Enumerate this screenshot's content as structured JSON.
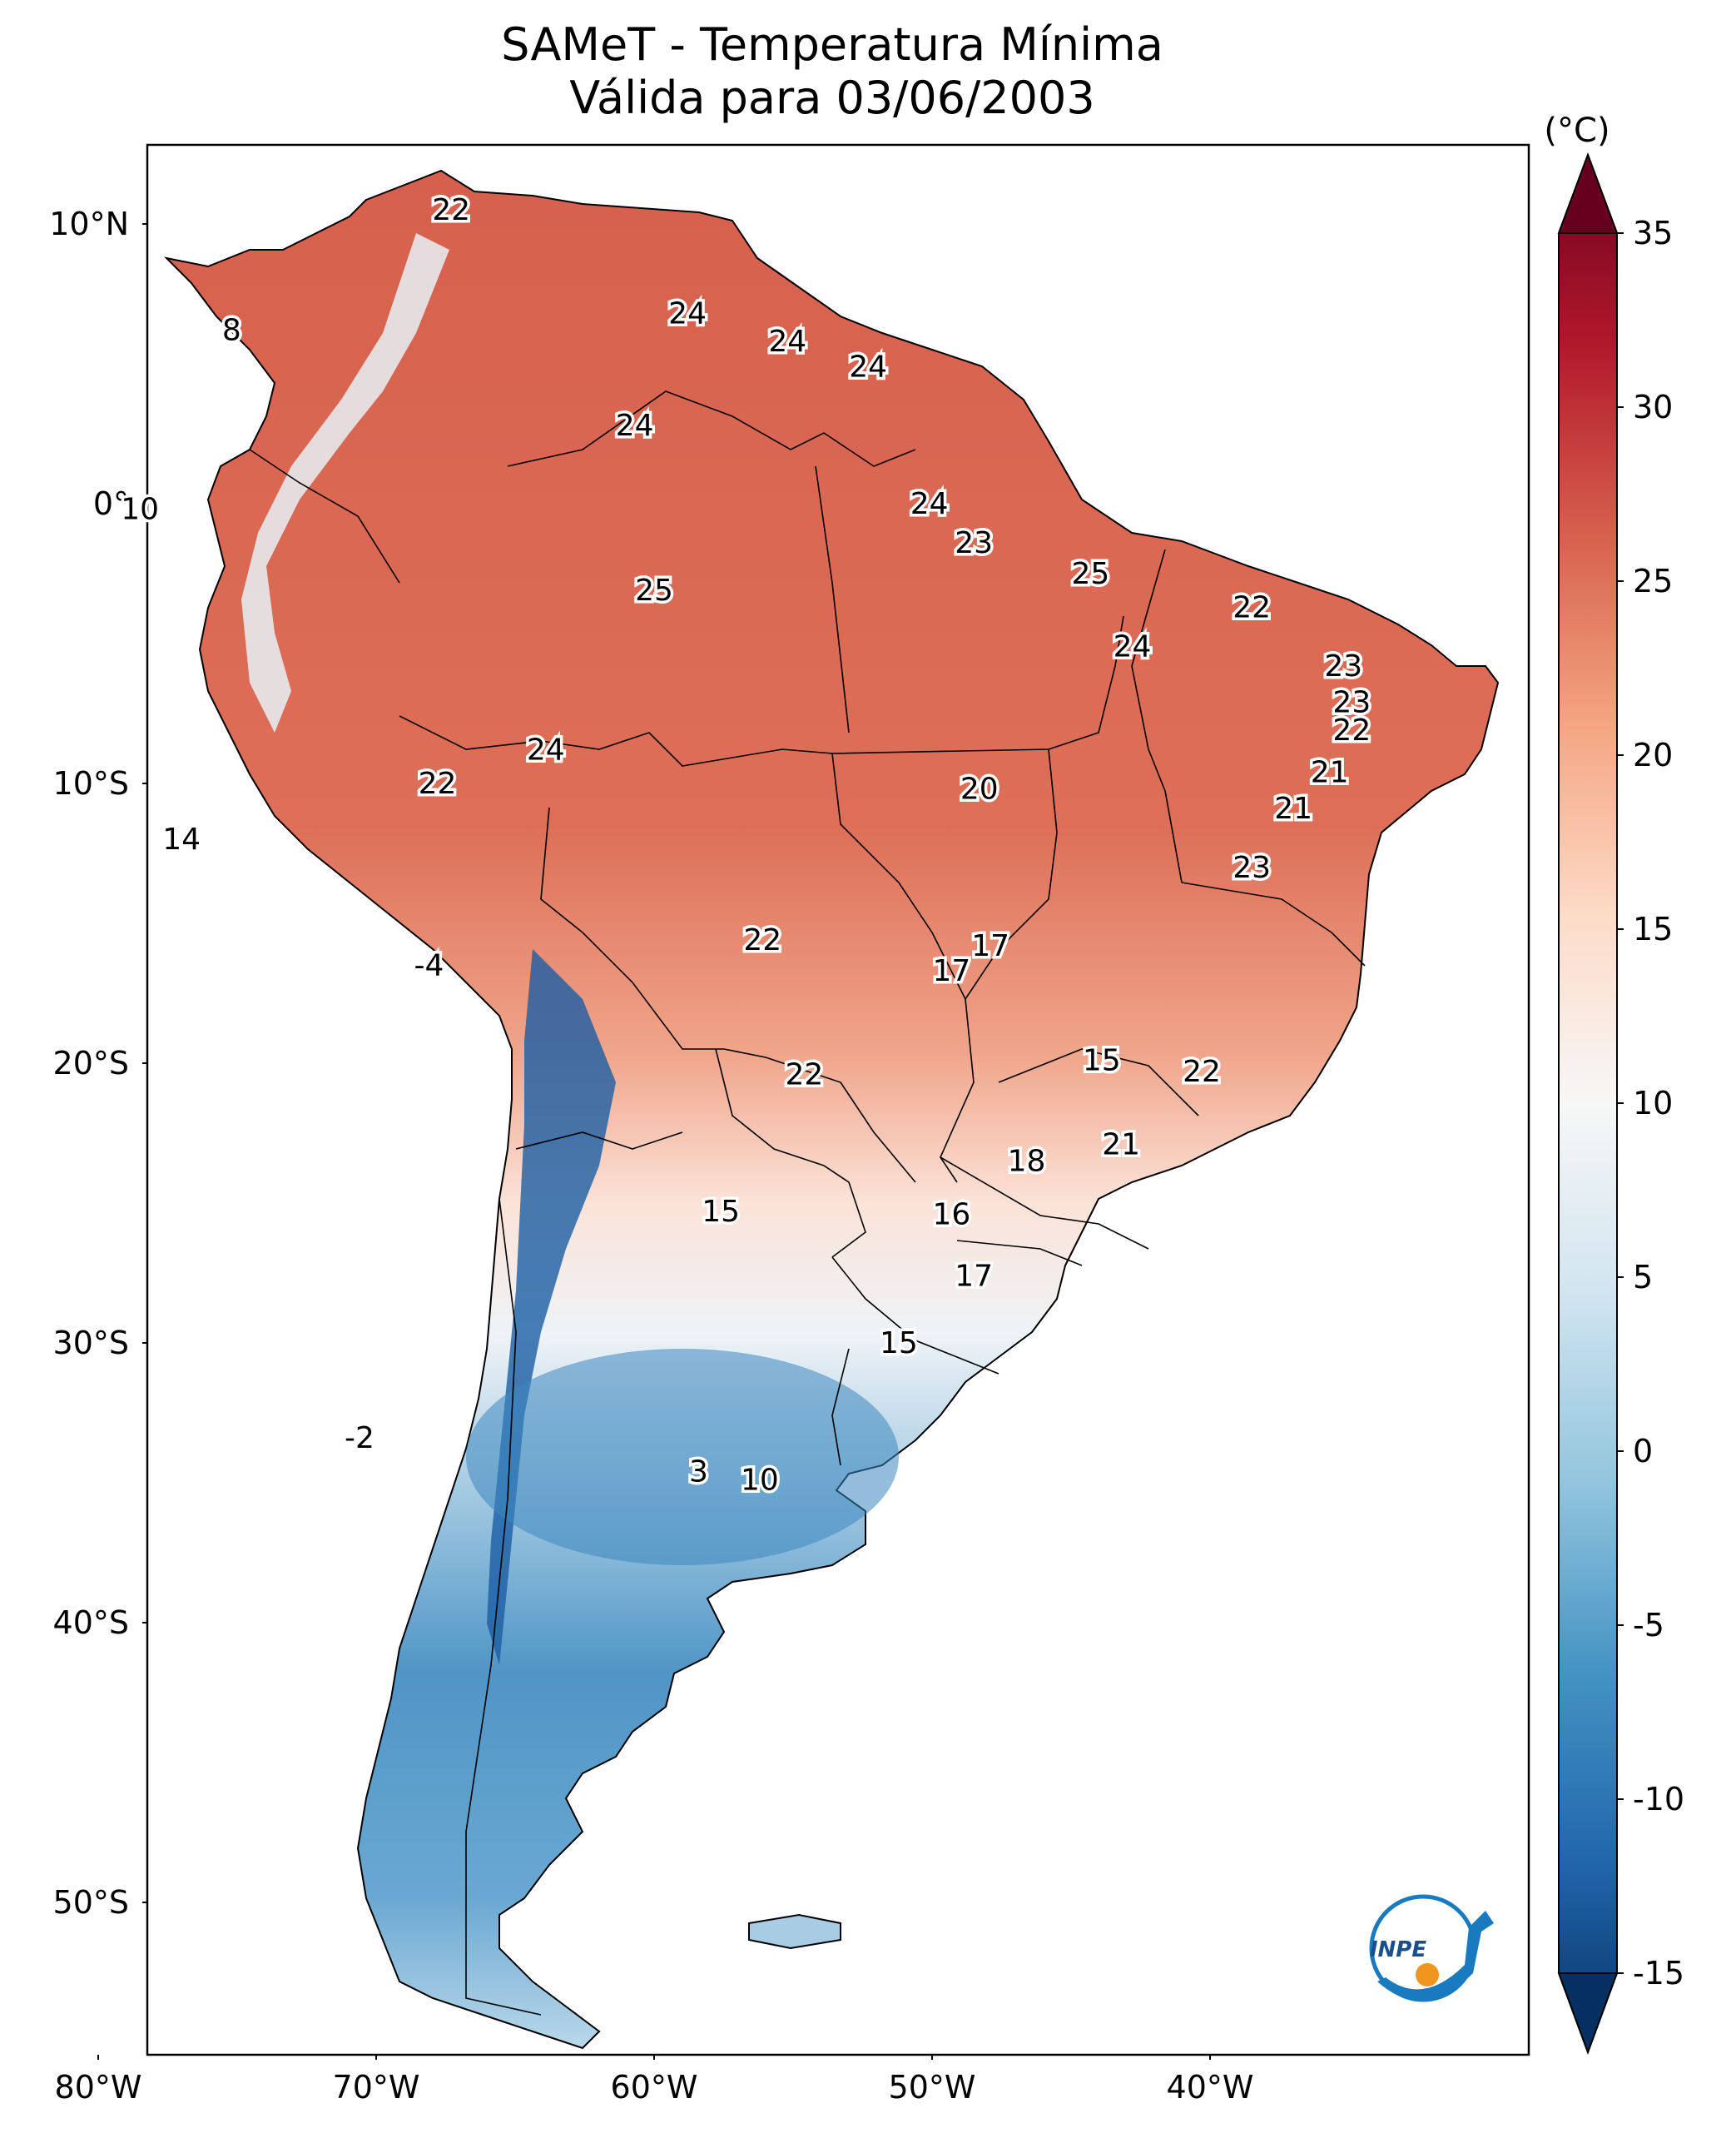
{
  "title": {
    "line1": "SAMeT - Temperatura Mínima",
    "line2": "Válida para 03/06/2003"
  },
  "lat_ticks": [
    {
      "label": "10°N",
      "lat": 10
    },
    {
      "label": "0°",
      "lat": 0
    },
    {
      "label": "10°S",
      "lat": -10
    },
    {
      "label": "20°S",
      "lat": -20
    },
    {
      "label": "30°S",
      "lat": -30
    },
    {
      "label": "40°S",
      "lat": -40
    },
    {
      "label": "50°S",
      "lat": -50
    }
  ],
  "lon_ticks": [
    {
      "label": "80°W",
      "lon": -80
    },
    {
      "label": "70°W",
      "lon": -70
    },
    {
      "label": "60°W",
      "lon": -60
    },
    {
      "label": "50°W",
      "lon": -50
    },
    {
      "label": "40°W",
      "lon": -40
    }
  ],
  "colorbar": {
    "unit": "(°C)",
    "min": -15,
    "max": 35,
    "ticks": [
      "35",
      "30",
      "25",
      "20",
      "15",
      "10",
      "5",
      "0",
      "-5",
      "-10",
      "-15"
    ],
    "colors": [
      "#053061",
      "#2166ac",
      "#4393c3",
      "#92c5de",
      "#d1e5f0",
      "#f7f7f7",
      "#fddbc7",
      "#f4a582",
      "#d6604d",
      "#b2182b",
      "#67001f"
    ]
  },
  "city_values": [
    {
      "v": "22",
      "lon": -67.3,
      "lat": 10.5
    },
    {
      "v": "8",
      "lon": -75.2,
      "lat": 6.2
    },
    {
      "v": "24",
      "lon": -58.8,
      "lat": 6.8
    },
    {
      "v": "24",
      "lon": -55.2,
      "lat": 5.8
    },
    {
      "v": "24",
      "lon": -52.3,
      "lat": 4.9
    },
    {
      "v": "24",
      "lon": -60.7,
      "lat": 2.8
    },
    {
      "v": "24",
      "lon": -50.1,
      "lat": 0.0
    },
    {
      "v": "10",
      "lon": -78.5,
      "lat": -0.2
    },
    {
      "v": "23",
      "lon": -48.5,
      "lat": -1.4
    },
    {
      "v": "25",
      "lon": -60.0,
      "lat": -3.1
    },
    {
      "v": "25",
      "lon": -44.3,
      "lat": -2.5
    },
    {
      "v": "22",
      "lon": -38.5,
      "lat": -3.7
    },
    {
      "v": "24",
      "lon": -42.8,
      "lat": -5.1
    },
    {
      "v": "23",
      "lon": -35.2,
      "lat": -5.8
    },
    {
      "v": "23",
      "lon": -34.9,
      "lat": -7.1
    },
    {
      "v": "22",
      "lon": -34.9,
      "lat": -8.1
    },
    {
      "v": "24",
      "lon": -63.9,
      "lat": -8.8
    },
    {
      "v": "22",
      "lon": -67.8,
      "lat": -10.0
    },
    {
      "v": "20",
      "lon": -48.3,
      "lat": -10.2
    },
    {
      "v": "21",
      "lon": -35.7,
      "lat": -9.6
    },
    {
      "v": "21",
      "lon": -37.0,
      "lat": -10.9
    },
    {
      "v": "14",
      "lon": -77.0,
      "lat": -12.0
    },
    {
      "v": "23",
      "lon": -38.5,
      "lat": -13.0
    },
    {
      "v": "22",
      "lon": -56.1,
      "lat": -15.6
    },
    {
      "v": "17",
      "lon": -47.9,
      "lat": -15.8
    },
    {
      "v": "17",
      "lon": -49.3,
      "lat": -16.7
    },
    {
      "v": "-4",
      "lon": -68.1,
      "lat": -16.5
    },
    {
      "v": "15",
      "lon": -43.9,
      "lat": -19.9
    },
    {
      "v": "22",
      "lon": -40.3,
      "lat": -20.3
    },
    {
      "v": "22",
      "lon": -54.6,
      "lat": -20.4
    },
    {
      "v": "21",
      "lon": -43.2,
      "lat": -22.9
    },
    {
      "v": "18",
      "lon": -46.6,
      "lat": -23.5
    },
    {
      "v": "15",
      "lon": -57.6,
      "lat": -25.3
    },
    {
      "v": "16",
      "lon": -49.3,
      "lat": -25.4
    },
    {
      "v": "17",
      "lon": -48.5,
      "lat": -27.6
    },
    {
      "v": "15",
      "lon": -51.2,
      "lat": -30.0
    },
    {
      "v": "-2",
      "lon": -70.6,
      "lat": -33.4
    },
    {
      "v": "3",
      "lon": -58.4,
      "lat": -34.6
    },
    {
      "v": "10",
      "lon": -56.2,
      "lat": -34.9
    }
  ],
  "logo": {
    "text": "INPE"
  }
}
